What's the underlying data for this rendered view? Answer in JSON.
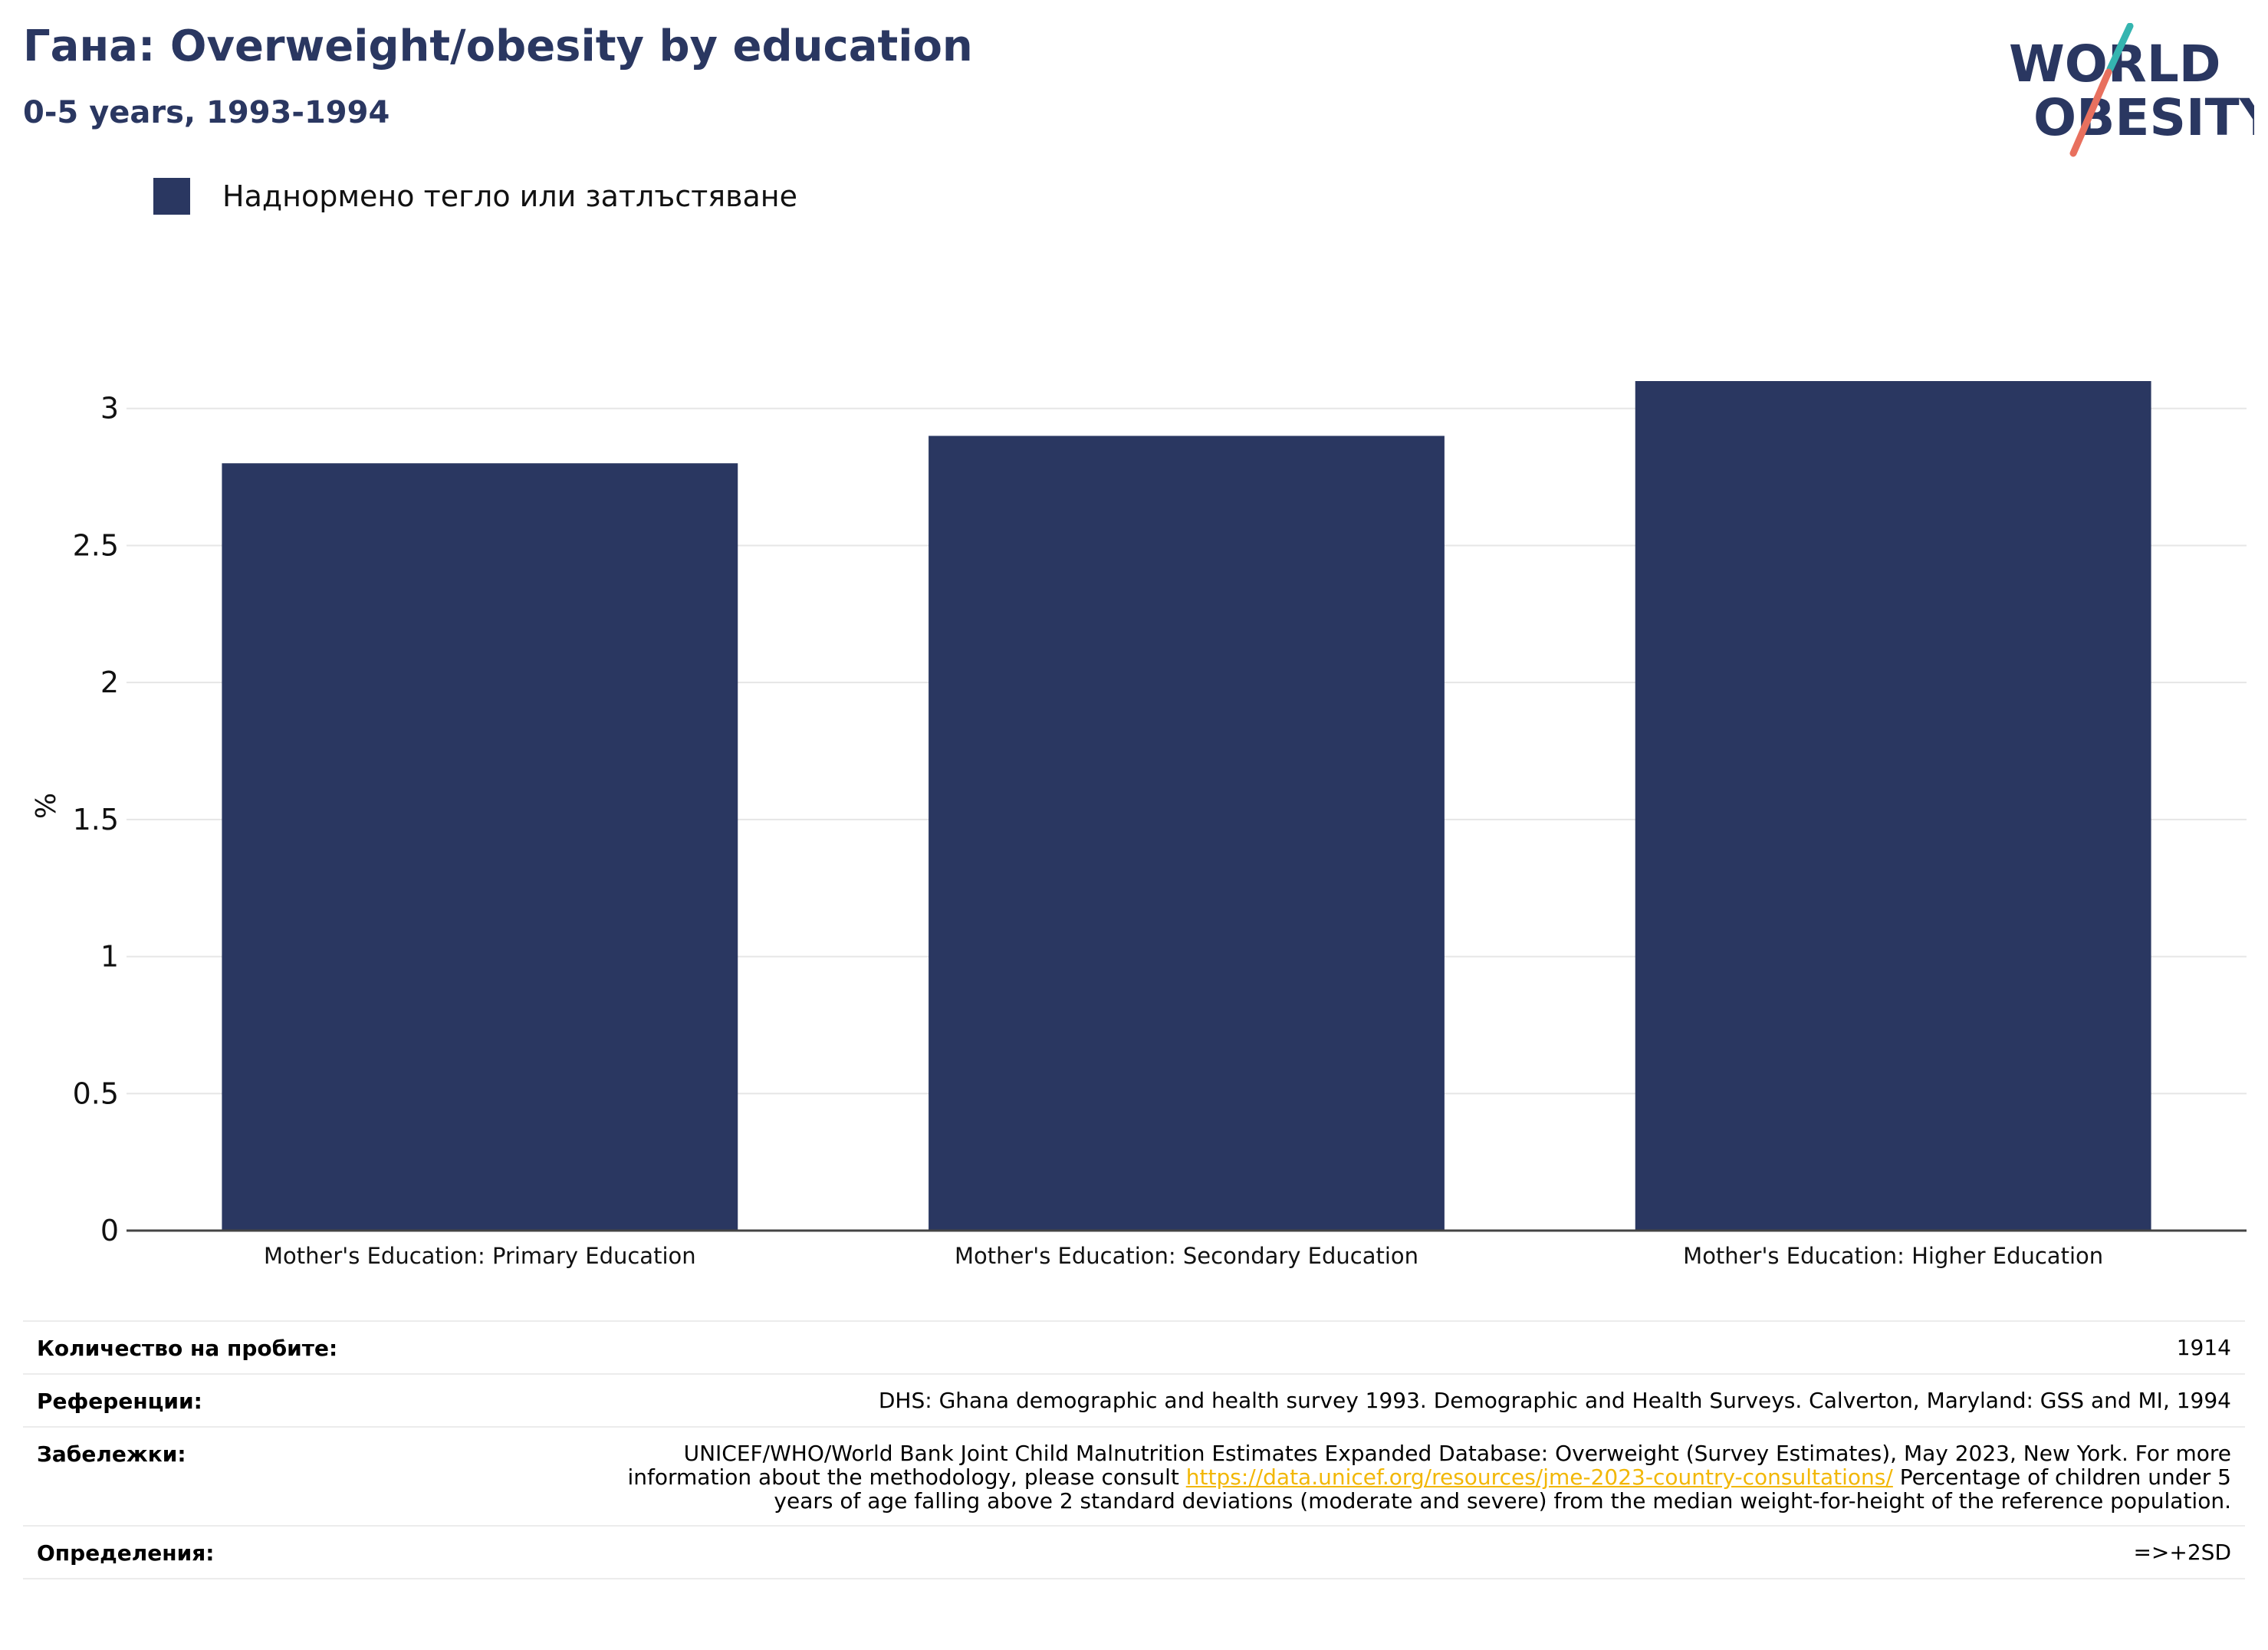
{
  "header": {
    "title": "Гана: Overweight/obesity by education",
    "subtitle": "0-5 years, 1993-1994"
  },
  "logo": {
    "line1": "WORLD",
    "line2": "OBESITY"
  },
  "colors": {
    "bar": "#2a3761",
    "title": "#2a3761",
    "grid": "#e6e6e6",
    "link": "#f2b705"
  },
  "chart_data": {
    "type": "bar",
    "categories": [
      "Mother's Education: Primary Education",
      "Mother's Education: Secondary Education",
      "Mother's Education: Higher Education"
    ],
    "series": [
      {
        "name": "Наднормено тегло или затлъстяване",
        "values": [
          2.8,
          2.9,
          3.1
        ]
      }
    ],
    "ylabel": "%",
    "ylim": [
      0,
      3.1
    ],
    "yticks": [
      "0",
      "0.5",
      "1",
      "1.5",
      "2",
      "2.5",
      "3"
    ],
    "grid": true,
    "legend": "top-left"
  },
  "notes": {
    "sample_label": "Количество на пробите:",
    "sample_value": "1914",
    "references_label": "Референции:",
    "references_value": "DHS: Ghana demographic and health survey 1993. Demographic and Health Surveys. Calverton, Maryland: GSS and MI, 1994",
    "remarks_label": "Забележки:",
    "remarks_before": "UNICEF/WHO/World Bank Joint Child Malnutrition Estimates Expanded Database: Overweight (Survey Estimates), May 2023, New York. For more information about the methodology, please consult",
    "remarks_link": "https://data.unicef.org/resources/jme-2023-country-consultations/",
    "remarks_after": "Percentage of children under 5 years of age falling above 2 standard deviations (moderate and severe) from the median weight-for-height of the reference population.",
    "definitions_label": "Определения:",
    "definitions_value": "=>+2SD"
  }
}
